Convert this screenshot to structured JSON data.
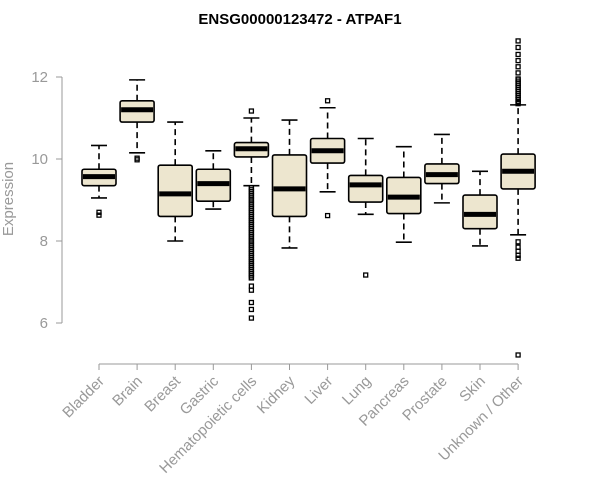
{
  "chart_data": {
    "type": "boxplot",
    "title": "ENSG00000123472 - ATPAF1",
    "xlabel": "",
    "ylabel": "Expression",
    "ylim": [
      5,
      13
    ],
    "yticks": [
      6,
      8,
      10,
      12
    ],
    "colors": {
      "box_fill": "#ede6cf",
      "box_stroke": "#000000",
      "axis": "#999999"
    },
    "categories": [
      "Bladder",
      "Brain",
      "Breast",
      "Gastric",
      "Hematopoietic cells",
      "Kidney",
      "Liver",
      "Lung",
      "Pancreas",
      "Prostate",
      "Skin",
      "Unknown / Other"
    ],
    "boxes": [
      {
        "category": "Bladder",
        "lower_whisker": 9.05,
        "q1": 9.35,
        "median": 9.57,
        "q3": 9.75,
        "upper_whisker": 10.33,
        "outliers": [
          8.7,
          8.63
        ]
      },
      {
        "category": "Brain",
        "lower_whisker": 10.15,
        "q1": 10.9,
        "median": 11.2,
        "q3": 11.42,
        "upper_whisker": 11.93,
        "outliers": [
          10.02,
          9.98
        ]
      },
      {
        "category": "Breast",
        "lower_whisker": 8.0,
        "q1": 8.6,
        "median": 9.15,
        "q3": 9.85,
        "upper_whisker": 10.9,
        "outliers": []
      },
      {
        "category": "Gastric",
        "lower_whisker": 8.78,
        "q1": 8.97,
        "median": 9.4,
        "q3": 9.75,
        "upper_whisker": 10.2,
        "outliers": []
      },
      {
        "category": "Hematopoietic cells",
        "lower_whisker": 9.35,
        "q1": 10.05,
        "median": 10.25,
        "q3": 10.4,
        "upper_whisker": 11.0,
        "outliers": [
          11.17,
          9.3,
          9.2,
          9.1,
          9.0,
          8.9,
          8.8,
          8.7,
          8.6,
          8.5,
          8.4,
          8.3,
          8.2,
          8.1,
          8.0,
          7.9,
          7.8,
          7.7,
          7.6,
          7.5,
          7.4,
          7.3,
          7.2,
          7.1,
          6.9,
          6.8,
          6.5,
          6.33,
          6.12
        ]
      },
      {
        "category": "Kidney",
        "lower_whisker": 7.83,
        "q1": 8.6,
        "median": 9.27,
        "q3": 10.1,
        "upper_whisker": 10.95,
        "outliers": []
      },
      {
        "category": "Liver",
        "lower_whisker": 9.2,
        "q1": 9.9,
        "median": 10.2,
        "q3": 10.5,
        "upper_whisker": 11.25,
        "outliers": [
          11.42,
          8.62
        ]
      },
      {
        "category": "Lung",
        "lower_whisker": 8.65,
        "q1": 8.95,
        "median": 9.37,
        "q3": 9.6,
        "upper_whisker": 10.5,
        "outliers": [
          7.17
        ]
      },
      {
        "category": "Pancreas",
        "lower_whisker": 7.97,
        "q1": 8.67,
        "median": 9.07,
        "q3": 9.55,
        "upper_whisker": 10.3,
        "outliers": []
      },
      {
        "category": "Prostate",
        "lower_whisker": 8.93,
        "q1": 9.4,
        "median": 9.62,
        "q3": 9.88,
        "upper_whisker": 10.6,
        "outliers": []
      },
      {
        "category": "Skin",
        "lower_whisker": 7.88,
        "q1": 8.3,
        "median": 8.65,
        "q3": 9.12,
        "upper_whisker": 9.7,
        "outliers": []
      },
      {
        "category": "Unknown / Other",
        "lower_whisker": 8.15,
        "q1": 9.27,
        "median": 9.7,
        "q3": 10.12,
        "upper_whisker": 11.32,
        "outliers": [
          12.88,
          12.72,
          12.55,
          12.4,
          12.25,
          12.1,
          11.95,
          11.85,
          11.75,
          11.65,
          11.55,
          11.45,
          11.38,
          7.98,
          7.85,
          7.75,
          7.65,
          7.58,
          5.22
        ]
      }
    ]
  }
}
